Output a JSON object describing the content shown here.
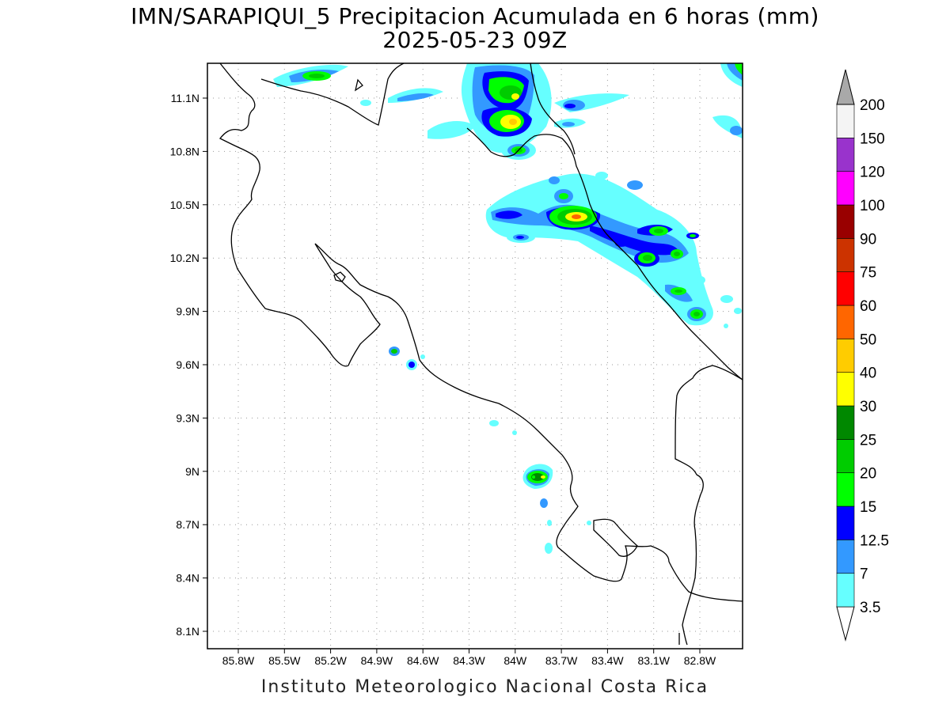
{
  "title_line1": "IMN/SARAPIQUI_5 Precipitacion Acumulada en 6 horas (mm)",
  "title_line2": "2025-05-23 09Z",
  "footer": "Instituto Meteorologico Nacional Costa Rica",
  "lat_labels": [
    "11.1N",
    "10.8N",
    "10.5N",
    "10.2N",
    "9.9N",
    "9.6N",
    "9.3N",
    "9N",
    "8.7N",
    "8.4N",
    "8.1N"
  ],
  "lon_labels": [
    "85.8W",
    "85.5W",
    "85.2W",
    "84.9W",
    "84.6W",
    "84.3W",
    "84W",
    "83.7W",
    "83.4W",
    "83.1W",
    "82.8W"
  ],
  "colorbar": {
    "levels": [
      {
        "value": "3.5",
        "color": "#66ffff"
      },
      {
        "value": "7",
        "color": "#3399ff"
      },
      {
        "value": "12.5",
        "color": "#0000ff"
      },
      {
        "value": "15",
        "color": "#00ff00"
      },
      {
        "value": "20",
        "color": "#00cc00"
      },
      {
        "value": "25",
        "color": "#008800"
      },
      {
        "value": "30",
        "color": "#ffff00"
      },
      {
        "value": "40",
        "color": "#ffcc00"
      },
      {
        "value": "50",
        "color": "#ff6600"
      },
      {
        "value": "60",
        "color": "#ff0000"
      },
      {
        "value": "75",
        "color": "#cc3300"
      },
      {
        "value": "90",
        "color": "#990000"
      },
      {
        "value": "100",
        "color": "#ff00ff"
      },
      {
        "value": "120",
        "color": "#9933cc"
      },
      {
        "value": "150",
        "color": "#f4f4f4"
      },
      {
        "value": "200",
        "color": "#a9a9a9"
      }
    ]
  }
}
